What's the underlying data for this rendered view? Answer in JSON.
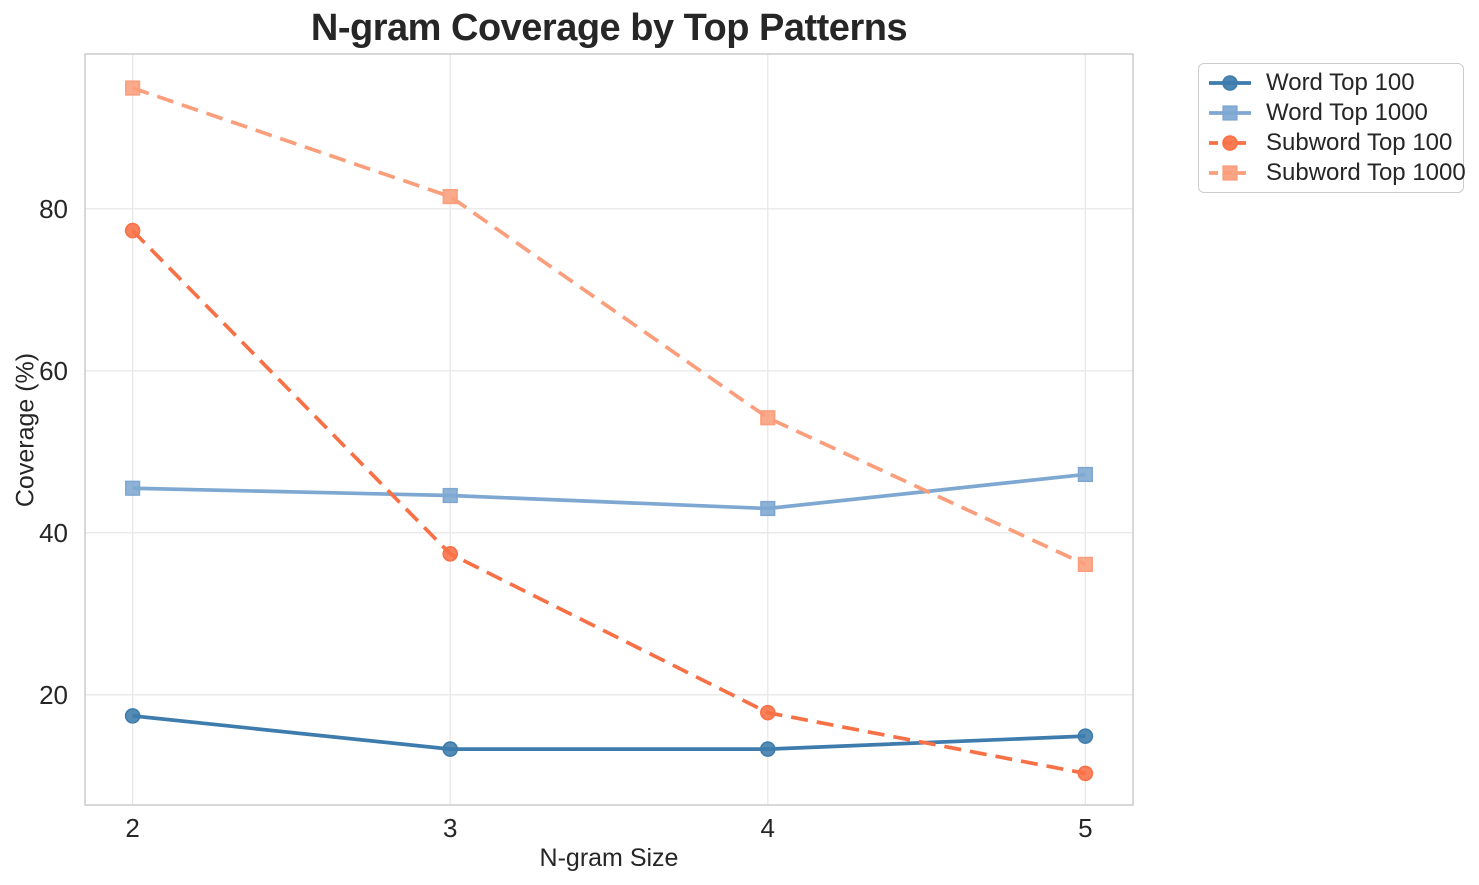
{
  "chart_data": {
    "type": "line",
    "title": "N-gram Coverage by Top Patterns",
    "xlabel": "N-gram Size",
    "ylabel": "Coverage (%)",
    "x": [
      2,
      3,
      4,
      5
    ],
    "xticks": [
      "2",
      "3",
      "4",
      "5"
    ],
    "xtick_values": [
      2,
      3,
      4,
      5
    ],
    "yticks": [
      "20",
      "40",
      "60",
      "80"
    ],
    "ytick_values": [
      20,
      40,
      60,
      80
    ],
    "xlim": [
      1.85,
      5.15
    ],
    "ylim": [
      6.4,
      99.1
    ],
    "grid": true,
    "legend_position": "outside-upper-right",
    "colors": {
      "background": "#ffffff",
      "grid": "#e8e8e8",
      "spine": "#cbcbcb",
      "text": "#262626"
    },
    "series": [
      {
        "name": "Word Top 100",
        "color": "#3D7CAC",
        "marker": "circle",
        "line_style": "solid",
        "values": [
          17.4,
          13.3,
          13.3,
          14.9
        ]
      },
      {
        "name": "Word Top 1000",
        "color": "#7EA8D1",
        "marker": "square",
        "line_style": "solid",
        "values": [
          45.5,
          44.6,
          43.0,
          47.2
        ]
      },
      {
        "name": "Subword Top 100",
        "color": "#F87146",
        "marker": "circle",
        "line_style": "dashed",
        "values": [
          77.3,
          37.4,
          17.8,
          10.3
        ]
      },
      {
        "name": "Subword Top 1000",
        "color": "#FA9E7C",
        "marker": "square",
        "line_style": "dashed",
        "values": [
          94.9,
          81.5,
          54.2,
          36.1
        ]
      }
    ]
  }
}
